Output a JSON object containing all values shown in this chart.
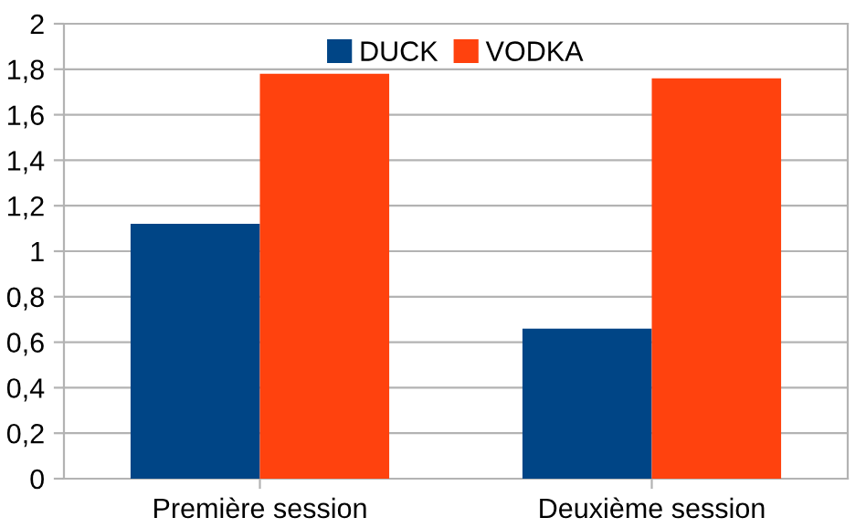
{
  "chart_data": {
    "type": "bar",
    "categories": [
      "Première session",
      "Deuxième session"
    ],
    "series": [
      {
        "name": "DUCK",
        "color": "#004586",
        "values": [
          1.12,
          0.66
        ]
      },
      {
        "name": "VODKA",
        "color": "#ff420e",
        "values": [
          1.78,
          1.76
        ]
      }
    ],
    "ylim": [
      0,
      2
    ],
    "yticks": [
      0,
      {
        "value": 0.2,
        "label": "0,2"
      },
      {
        "value": 0.4,
        "label": "0,4"
      },
      {
        "value": 0.6,
        "label": "0,6"
      },
      {
        "value": 0.8,
        "label": "0,8"
      },
      1,
      {
        "value": 1.2,
        "label": "1,2"
      },
      {
        "value": 1.4,
        "label": "1,4"
      },
      {
        "value": 1.6,
        "label": "1,6"
      },
      {
        "value": 1.8,
        "label": "1,8"
      },
      2
    ],
    "grid": "y",
    "legend": "top"
  }
}
